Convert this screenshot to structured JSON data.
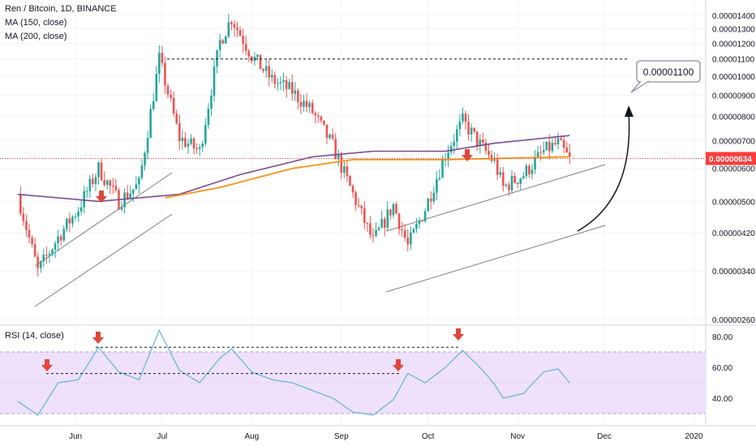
{
  "legend": {
    "title": "Ren / Bitcoin, 1D, BINANCE",
    "ma150": "MA (150, close)",
    "ma200": "MA (200, close)",
    "rsi": "RSI (14, close)"
  },
  "colors": {
    "up": "#26a69a",
    "down": "#ef5350",
    "ma150": "#7b4b94",
    "ma200": "#f7931a",
    "rsi_line": "#5fb3d9",
    "rsi_band": "#efe1fb",
    "channel": "#7f7f7f",
    "arrow": "#e0463c",
    "price_tag": "#ff3b3b"
  },
  "chart_data": [
    {
      "type": "candlestick",
      "title": "Ren / Bitcoin, 1D, BINANCE",
      "x_labels": [
        "Jun",
        "Jul",
        "Aug",
        "Sep",
        "Oct",
        "Nov",
        "Dec",
        "2020"
      ],
      "y_ticks": [
        "0.00001400",
        "0.00001300",
        "0.00001200",
        "0.00001100",
        "0.00001000",
        "0.00000900",
        "0.00000800",
        "0.00000700",
        "0.00000600",
        "0.00000500",
        "0.00000420",
        "0.00000340",
        "0.00000260"
      ],
      "y_log_scale": true,
      "ylim": [
        2.6e-06,
        1.45e-05
      ],
      "last_price": "0.00000634",
      "target_label": "0.00001100",
      "ohlc_path": [
        {
          "x": "May 12",
          "y": 5.2e-06
        },
        {
          "x": "May 19",
          "y": 3.4e-06
        },
        {
          "x": "May 26",
          "y": 4.1e-06
        },
        {
          "x": "Jun 2",
          "y": 4.8e-06
        },
        {
          "x": "Jun 9",
          "y": 6e-06
        },
        {
          "x": "Jun 16",
          "y": 5e-06
        },
        {
          "x": "Jun 23",
          "y": 5.5e-06
        },
        {
          "x": "Jun 30",
          "y": 1.1e-05
        },
        {
          "x": "Jul 7",
          "y": 7.1e-06
        },
        {
          "x": "Jul 14",
          "y": 6.6e-06
        },
        {
          "x": "Jul 21",
          "y": 1.21e-05
        },
        {
          "x": "Jul 25",
          "y": 1.38e-05
        },
        {
          "x": "Aug 1",
          "y": 1.12e-05
        },
        {
          "x": "Aug 8",
          "y": 9.8e-06
        },
        {
          "x": "Aug 15",
          "y": 9.2e-06
        },
        {
          "x": "Aug 22",
          "y": 8.2e-06
        },
        {
          "x": "Aug 29",
          "y": 6.8e-06
        },
        {
          "x": "Sep 5",
          "y": 5.2e-06
        },
        {
          "x": "Sep 12",
          "y": 4e-06
        },
        {
          "x": "Sep 19",
          "y": 4.9e-06
        },
        {
          "x": "Sep 24",
          "y": 3.9e-06
        },
        {
          "x": "Sep 30",
          "y": 4.8e-06
        },
        {
          "x": "Oct 7",
          "y": 6.5e-06
        },
        {
          "x": "Oct 13",
          "y": 7.8e-06
        },
        {
          "x": "Oct 20",
          "y": 6.7e-06
        },
        {
          "x": "Oct 24",
          "y": 6.2e-06
        },
        {
          "x": "Oct 27",
          "y": 5.4e-06
        },
        {
          "x": "Nov 3",
          "y": 5.8e-06
        },
        {
          "x": "Nov 10",
          "y": 6.6e-06
        },
        {
          "x": "Nov 15",
          "y": 6.9e-06
        },
        {
          "x": "Nov 19",
          "y": 6.3e-06
        }
      ],
      "ma150": [
        {
          "x": "May 12",
          "y": 5.2e-06
        },
        {
          "x": "Jun 9",
          "y": 5e-06
        },
        {
          "x": "Jul 7",
          "y": 5.2e-06
        },
        {
          "x": "Jul 28",
          "y": 5.8e-06
        },
        {
          "x": "Aug 22",
          "y": 6.4e-06
        },
        {
          "x": "Sep 12",
          "y": 6.6e-06
        },
        {
          "x": "Oct 7",
          "y": 6.6e-06
        },
        {
          "x": "Oct 24",
          "y": 6.9e-06
        },
        {
          "x": "Nov 19",
          "y": 7.2e-06
        }
      ],
      "ma200": [
        {
          "x": "Jul 2",
          "y": 5.1e-06
        },
        {
          "x": "Jul 21",
          "y": 5.4e-06
        },
        {
          "x": "Aug 15",
          "y": 6e-06
        },
        {
          "x": "Sep 5",
          "y": 6.3e-06
        },
        {
          "x": "Oct 7",
          "y": 6.3e-06
        },
        {
          "x": "Nov 19",
          "y": 6.4e-06
        }
      ]
    },
    {
      "type": "line",
      "title": "RSI (14, close)",
      "y_ticks": [
        "80.00",
        "60.00",
        "40.00"
      ],
      "ylim": [
        26,
        86
      ],
      "band": [
        30,
        70
      ],
      "values": [
        {
          "x": "May 12",
          "y": 38
        },
        {
          "x": "May 19",
          "y": 29
        },
        {
          "x": "May 26",
          "y": 50
        },
        {
          "x": "Jun 2",
          "y": 52
        },
        {
          "x": "Jun 9",
          "y": 73
        },
        {
          "x": "Jun 16",
          "y": 57
        },
        {
          "x": "Jun 23",
          "y": 52
        },
        {
          "x": "Jun 30",
          "y": 84
        },
        {
          "x": "Jul 7",
          "y": 58
        },
        {
          "x": "Jul 14",
          "y": 50
        },
        {
          "x": "Jul 21",
          "y": 66
        },
        {
          "x": "Jul 25",
          "y": 72
        },
        {
          "x": "Aug 1",
          "y": 57
        },
        {
          "x": "Aug 8",
          "y": 52
        },
        {
          "x": "Aug 15",
          "y": 50
        },
        {
          "x": "Aug 22",
          "y": 45
        },
        {
          "x": "Aug 29",
          "y": 40
        },
        {
          "x": "Sep 5",
          "y": 31
        },
        {
          "x": "Sep 12",
          "y": 29
        },
        {
          "x": "Sep 19",
          "y": 39
        },
        {
          "x": "Sep 24",
          "y": 56
        },
        {
          "x": "Sep 30",
          "y": 50
        },
        {
          "x": "Oct 7",
          "y": 60
        },
        {
          "x": "Oct 13",
          "y": 71
        },
        {
          "x": "Oct 20",
          "y": 58
        },
        {
          "x": "Oct 24",
          "y": 49
        },
        {
          "x": "Oct 27",
          "y": 40
        },
        {
          "x": "Nov 3",
          "y": 43
        },
        {
          "x": "Nov 10",
          "y": 57
        },
        {
          "x": "Nov 15",
          "y": 59
        },
        {
          "x": "Nov 19",
          "y": 50
        }
      ]
    }
  ]
}
